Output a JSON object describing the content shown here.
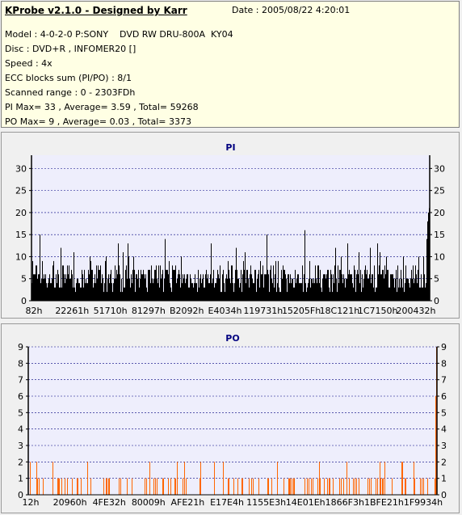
{
  "header": {
    "title": "KProbe v2.1.0 - Designed by Karr",
    "date": "Date : 2005/08/22 4:20:01",
    "lines": [
      "Model : 4-0-2-0 P:SONY    DVD RW DRU-800A  KY04",
      "Disc : DVD+R , INFOMER20 []",
      "Speed : 4x",
      "ECC blocks sum (PI/PO) : 8/1",
      "Scanned range : 0 - 2303FDh",
      "PI Max= 33 , Average= 3.59 , Total= 59268",
      "PO Max= 9 , Average= 0.03 , Total= 3373"
    ]
  },
  "chart_data": [
    {
      "type": "bar",
      "title": "PI",
      "ylim": [
        0,
        33
      ],
      "yticks": [
        0,
        5,
        10,
        15,
        20,
        25,
        30
      ],
      "x_tick_labels": [
        "82h",
        "22261h",
        "51710h",
        "81297h",
        "B2092h",
        "E4034h",
        "119731h",
        "15205Fh",
        "18C121h",
        "1C7150h",
        "200432h"
      ],
      "x_range": [
        "0",
        "2303FDh"
      ],
      "grid": true,
      "colors": {
        "bars": "#000000",
        "plot_bg": "#eeeefc",
        "grid": "#000080",
        "title": "#000080"
      },
      "summary": {
        "max": 33,
        "average": 3.59,
        "total": 59268
      },
      "end_values": [
        14,
        18,
        20,
        21
      ]
    },
    {
      "type": "bar",
      "title": "PO",
      "ylim": [
        0,
        9
      ],
      "yticks": [
        0,
        1,
        2,
        3,
        4,
        5,
        6,
        7,
        8,
        9
      ],
      "x_tick_labels": [
        "12h",
        "20960h",
        "4FE32h",
        "80009h",
        "AFE21h",
        "E17E4h",
        "1155E3h",
        "14E01Eh",
        "1866F3h",
        "1BFE21h",
        "1F9934h"
      ],
      "x_range": [
        "0",
        "2303FDh"
      ],
      "grid": true,
      "colors": {
        "bars": "#ff6600",
        "plot_bg": "#eeeefc",
        "grid": "#000080",
        "title": "#000080"
      },
      "summary": {
        "max": 9,
        "average": 0.03,
        "total": 3373
      },
      "end_values": [
        6,
        9
      ]
    }
  ]
}
